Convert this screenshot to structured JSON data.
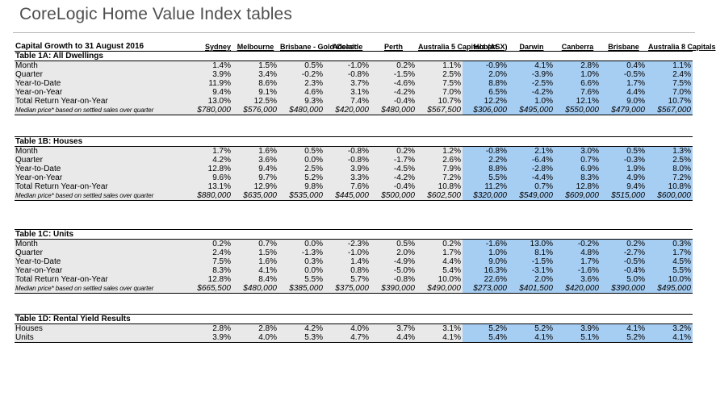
{
  "page_title": "CoreLogic Home Value Index tables",
  "header": {
    "label": "Capital Growth to 31 August 2016",
    "columns": [
      "Sydney",
      "Melbourne",
      "Brisbane - Gold Coast",
      "Adelaide",
      "Perth",
      "Australia 5 Capitals (ASX)",
      "Hobart",
      "Darwin",
      "Canberra",
      "Brisbane",
      "Australia 8 Capitals"
    ]
  },
  "colors": {
    "highlight": "#a6cdf2",
    "grey_band": "#e9e9e9"
  },
  "tables": [
    {
      "title": "Table 1A: All Dwellings",
      "rows": [
        {
          "label": "Month",
          "values": [
            "1.4%",
            "1.5%",
            "0.5%",
            "-1.0%",
            "0.2%",
            "1.1%",
            "-0.9%",
            "4.1%",
            "2.8%",
            "0.4%",
            "1.1%"
          ]
        },
        {
          "label": "Quarter",
          "values": [
            "3.9%",
            "3.4%",
            "-0.2%",
            "-0.8%",
            "-1.5%",
            "2.5%",
            "2.0%",
            "-3.9%",
            "1.0%",
            "-0.5%",
            "2.4%"
          ]
        },
        {
          "label": "Year-to-Date",
          "values": [
            "11.9%",
            "8.6%",
            "2.3%",
            "3.7%",
            "-4.6%",
            "7.5%",
            "8.8%",
            "-2.5%",
            "6.6%",
            "1.7%",
            "7.5%"
          ]
        },
        {
          "label": "Year-on-Year",
          "values": [
            "9.4%",
            "9.1%",
            "4.6%",
            "3.1%",
            "-4.2%",
            "7.0%",
            "6.5%",
            "-4.2%",
            "7.6%",
            "4.4%",
            "7.0%"
          ]
        },
        {
          "label": "Total Return Year-on-Year",
          "values": [
            "13.0%",
            "12.5%",
            "9.3%",
            "7.4%",
            "-0.4%",
            "10.7%",
            "12.2%",
            "1.0%",
            "12.1%",
            "9.0%",
            "10.7%"
          ]
        },
        {
          "label": "Median price* based on settled sales over quarter",
          "values": [
            "$780,000",
            "$576,000",
            "$480,000",
            "$420,000",
            "$480,000",
            "$567,500",
            "$306,000",
            "$495,000",
            "$550,000",
            "$479,000",
            "$567,000"
          ]
        }
      ]
    },
    {
      "title": "Table 1B: Houses",
      "rows": [
        {
          "label": "Month",
          "values": [
            "1.7%",
            "1.6%",
            "0.5%",
            "-0.8%",
            "0.2%",
            "1.2%",
            "-0.8%",
            "2.1%",
            "3.0%",
            "0.5%",
            "1.3%"
          ]
        },
        {
          "label": "Quarter",
          "values": [
            "4.2%",
            "3.6%",
            "0.0%",
            "-0.8%",
            "-1.7%",
            "2.6%",
            "2.2%",
            "-6.4%",
            "0.7%",
            "-0.3%",
            "2.5%"
          ]
        },
        {
          "label": "Year-to-Date",
          "values": [
            "12.8%",
            "9.4%",
            "2.5%",
            "3.9%",
            "-4.5%",
            "7.9%",
            "8.8%",
            "-2.8%",
            "6.9%",
            "1.9%",
            "8.0%"
          ]
        },
        {
          "label": "Year-on-Year",
          "values": [
            "9.6%",
            "9.7%",
            "5.2%",
            "3.3%",
            "-4.2%",
            "7.2%",
            "5.5%",
            "-4.4%",
            "8.3%",
            "4.9%",
            "7.2%"
          ]
        },
        {
          "label": "Total Return Year-on-Year",
          "values": [
            "13.1%",
            "12.9%",
            "9.8%",
            "7.6%",
            "-0.4%",
            "10.8%",
            "11.2%",
            "0.7%",
            "12.8%",
            "9.4%",
            "10.8%"
          ]
        },
        {
          "label": "Median price* based on settled sales over quarter",
          "values": [
            "$880,000",
            "$635,000",
            "$535,000",
            "$445,000",
            "$500,000",
            "$602,500",
            "$320,000",
            "$549,000",
            "$609,000",
            "$515,000",
            "$600,000"
          ]
        }
      ]
    },
    {
      "title": "Table 1C: Units",
      "rows": [
        {
          "label": "Month",
          "values": [
            "0.2%",
            "0.7%",
            "0.0%",
            "-2.3%",
            "0.5%",
            "0.2%",
            "-1.6%",
            "13.0%",
            "-0.2%",
            "0.2%",
            "0.3%"
          ]
        },
        {
          "label": "Quarter",
          "values": [
            "2.4%",
            "1.5%",
            "-1.3%",
            "-1.0%",
            "2.0%",
            "1.7%",
            "1.0%",
            "8.1%",
            "4.8%",
            "-2.7%",
            "1.7%"
          ]
        },
        {
          "label": "Year-to-Date",
          "values": [
            "7.5%",
            "1.6%",
            "0.3%",
            "1.4%",
            "-4.9%",
            "4.4%",
            "9.0%",
            "-1.5%",
            "1.7%",
            "-0.5%",
            "4.5%"
          ]
        },
        {
          "label": "Year-on-Year",
          "values": [
            "8.3%",
            "4.1%",
            "0.0%",
            "0.8%",
            "-5.0%",
            "5.4%",
            "16.3%",
            "-3.1%",
            "-1.6%",
            "-0.4%",
            "5.5%"
          ]
        },
        {
          "label": "Total Return Year-on-Year",
          "values": [
            "12.8%",
            "8.4%",
            "5.5%",
            "5.7%",
            "-0.8%",
            "10.0%",
            "22.6%",
            "2.0%",
            "3.6%",
            "5.0%",
            "10.0%"
          ]
        },
        {
          "label": "Median price* based on settled sales over quarter",
          "values": [
            "$665,500",
            "$480,000",
            "$385,000",
            "$375,000",
            "$390,000",
            "$490,000",
            "$273,000",
            "$401,500",
            "$420,000",
            "$390,000",
            "$495,000"
          ]
        }
      ]
    },
    {
      "title": "Table 1D: Rental Yield Results",
      "rows": [
        {
          "label": "Houses",
          "values": [
            "2.8%",
            "2.8%",
            "4.2%",
            "4.0%",
            "3.7%",
            "3.1%",
            "5.2%",
            "5.2%",
            "3.9%",
            "4.1%",
            "3.2%"
          ]
        },
        {
          "label": "Units",
          "values": [
            "3.9%",
            "4.0%",
            "5.3%",
            "4.7%",
            "4.4%",
            "4.1%",
            "5.4%",
            "4.1%",
            "5.1%",
            "5.2%",
            "4.1%"
          ]
        }
      ]
    }
  ]
}
